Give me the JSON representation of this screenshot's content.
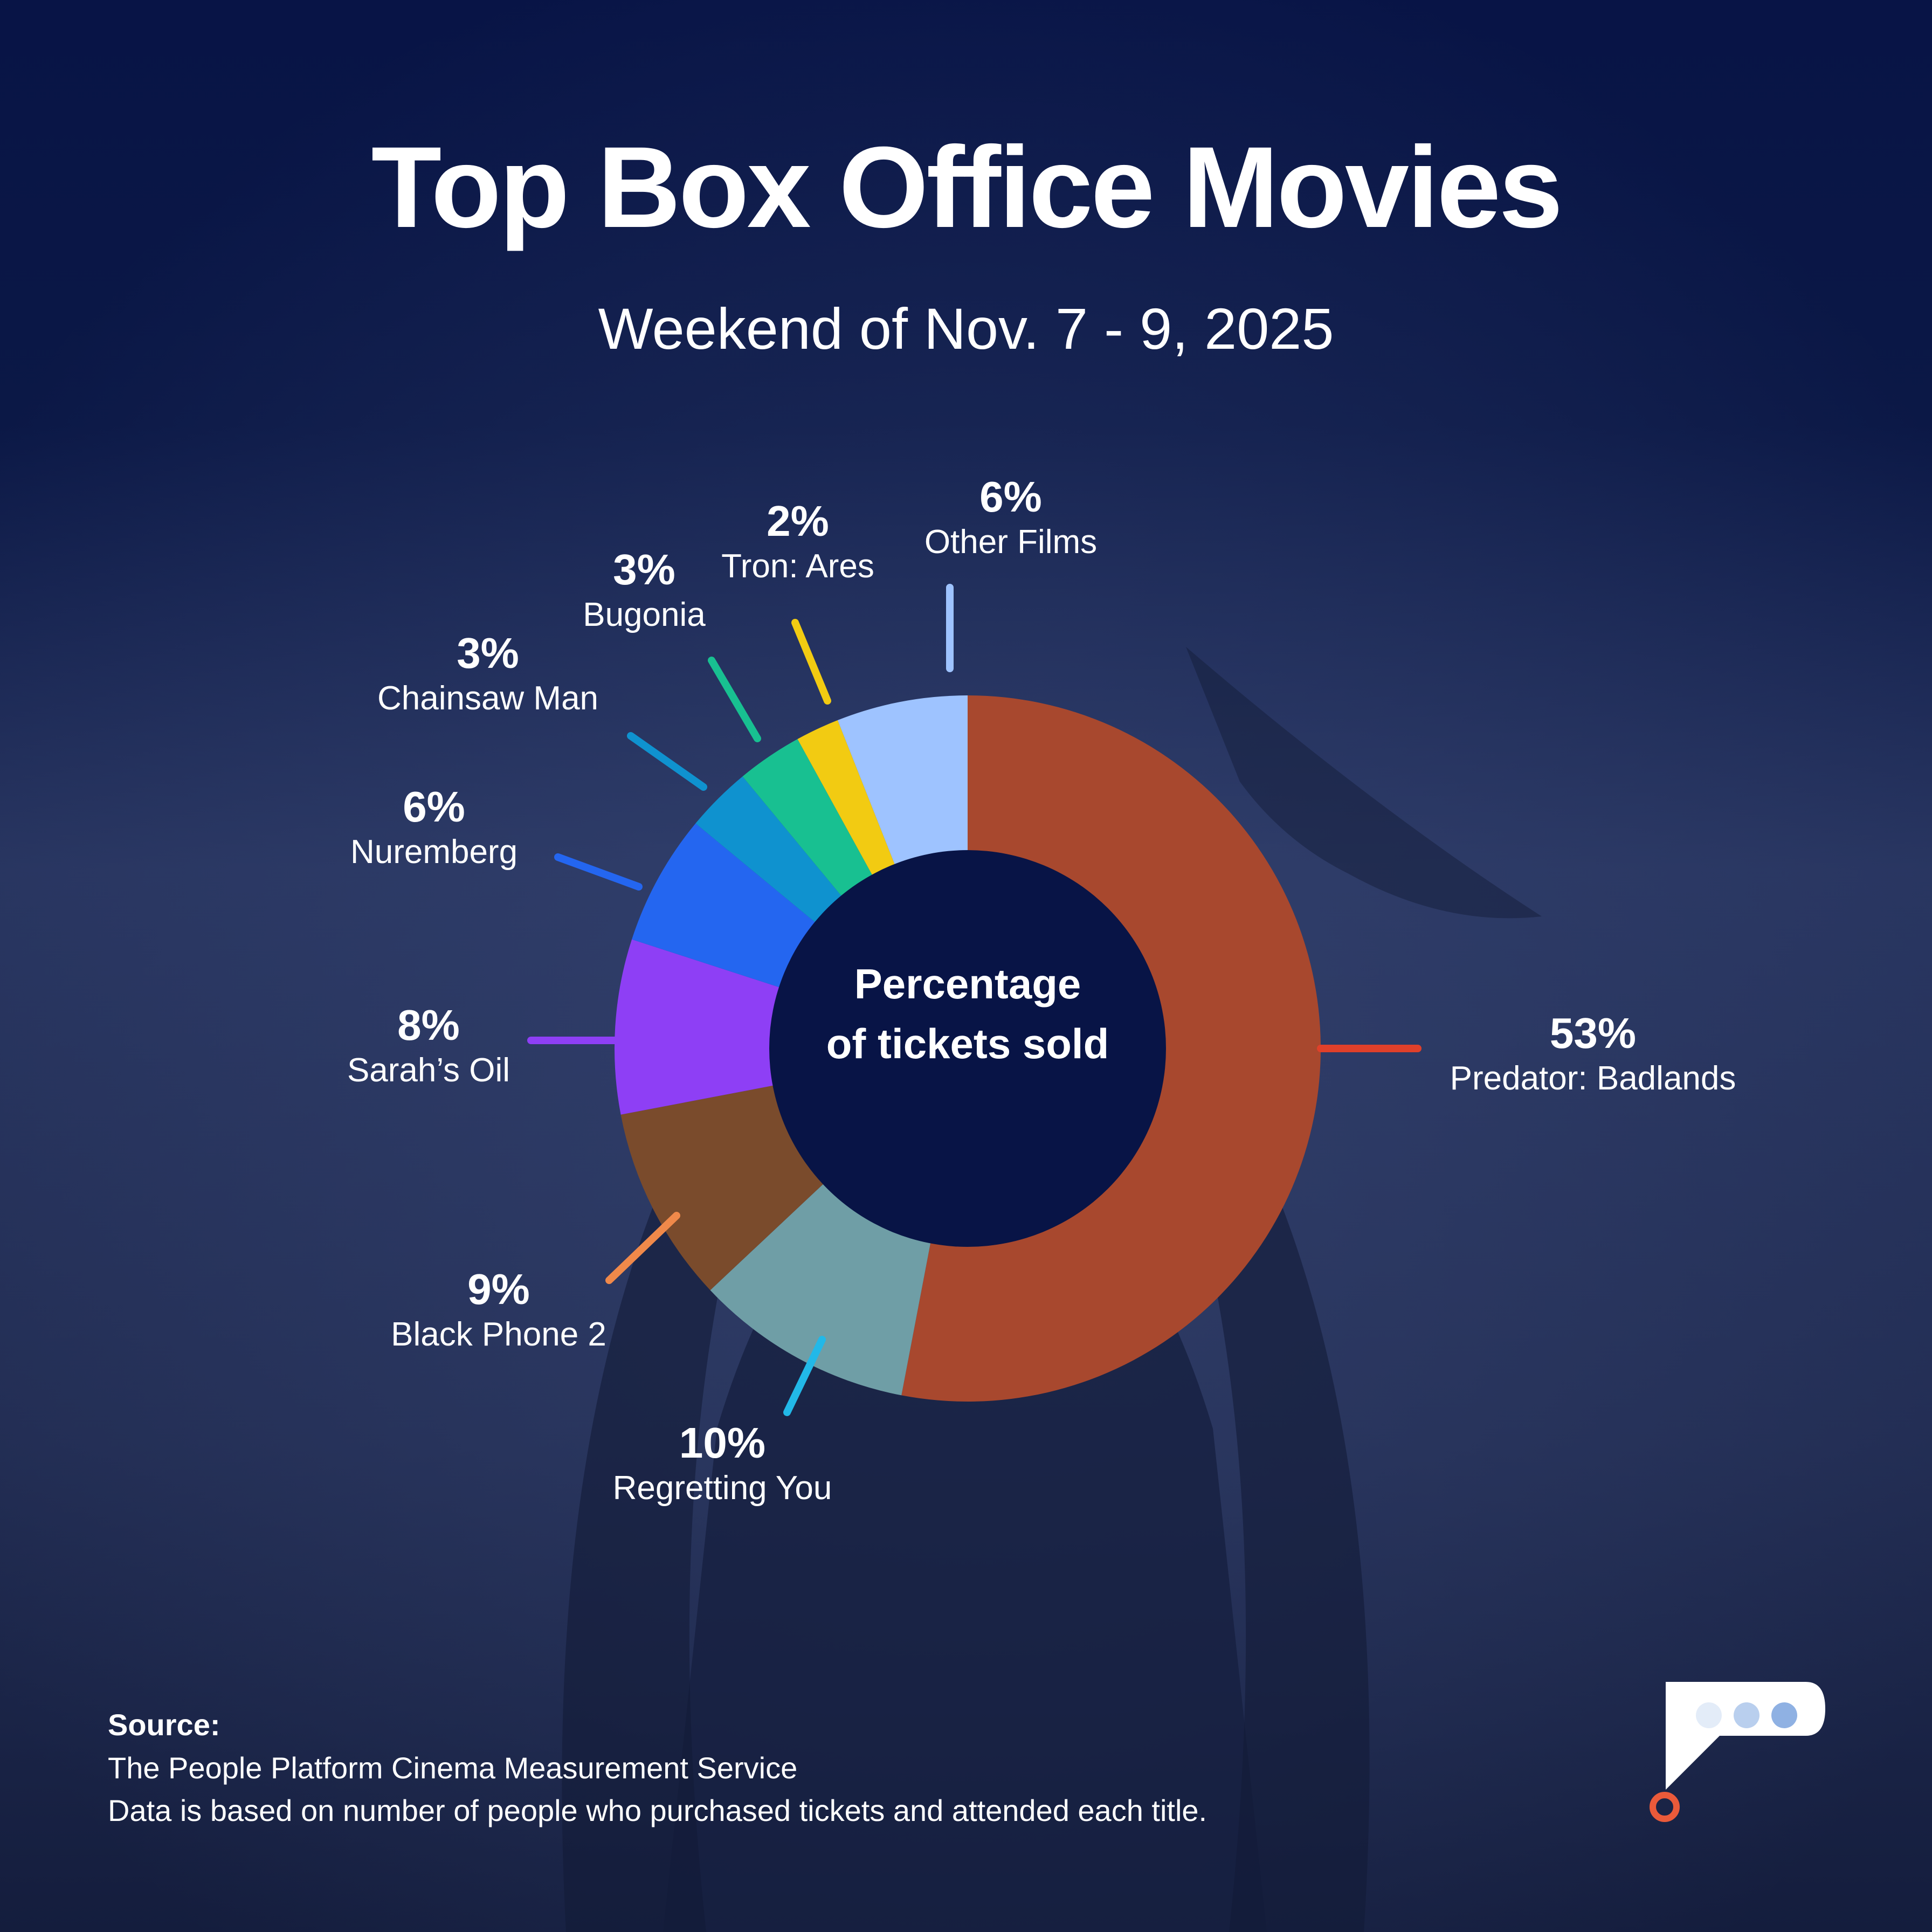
{
  "title": "Top Box Office Movies",
  "subtitle": "Weekend of Nov. 7 - 9, 2025",
  "center": {
    "line1": "Percentage",
    "line2": "of tickets sold"
  },
  "source": {
    "heading": "Source:",
    "line1": "The People Platform Cinema Measurement Service",
    "line2": "Data is based on number of people who purchased tickets and attended each title."
  },
  "chart_data": {
    "type": "pie",
    "donut": true,
    "start": "12 o'clock, clockwise",
    "total": 100,
    "slices": [
      {
        "label": "Predator: Badlands",
        "value": 53,
        "pct_label": "53%",
        "color": "#a8482e",
        "leader_color": "#e0402a"
      },
      {
        "label": "Regretting You",
        "value": 10,
        "pct_label": "10%",
        "color": "#6f9ea6",
        "leader_color": "#22b8e8"
      },
      {
        "label": "Black Phone 2",
        "value": 9,
        "pct_label": "9%",
        "color": "#7a4b2c",
        "leader_color": "#f0894a"
      },
      {
        "label": "Sarah’s Oil",
        "value": 8,
        "pct_label": "8%",
        "color": "#8e3ff5",
        "leader_color": "#8e3ff5"
      },
      {
        "label": "Nuremberg",
        "value": 6,
        "pct_label": "6%",
        "color": "#2466f0",
        "leader_color": "#2466f0"
      },
      {
        "label": "Chainsaw Man",
        "value": 3,
        "pct_label": "3%",
        "color": "#0f92cf",
        "leader_color": "#0f92cf"
      },
      {
        "label": "Bugonia",
        "value": 3,
        "pct_label": "3%",
        "color": "#18c091",
        "leader_color": "#18c091"
      },
      {
        "label": "Tron: Ares",
        "value": 2,
        "pct_label": "2%",
        "color": "#f2cb12",
        "leader_color": "#f2cb12"
      },
      {
        "label": "Other Films",
        "value": 6,
        "pct_label": "6%",
        "color": "#9ec3ff",
        "leader_color": "#9ec3ff"
      }
    ]
  }
}
